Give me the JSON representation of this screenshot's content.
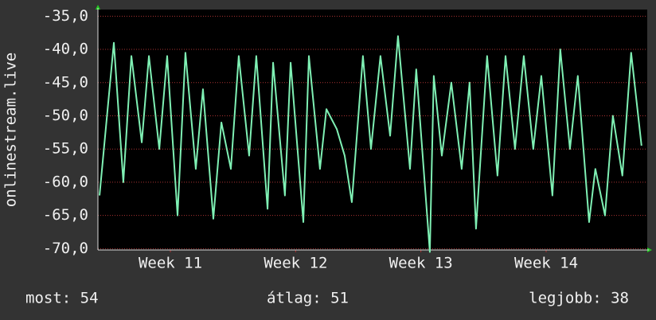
{
  "chart_data": {
    "type": "line",
    "y_label": "onlinestream.live",
    "x": [
      0.09,
      0.89,
      1.42,
      1.87,
      2.45,
      2.85,
      3.43,
      3.87,
      4.45,
      4.89,
      5.47,
      5.87,
      6.45,
      6.9,
      7.43,
      7.87,
      8.45,
      8.85,
      9.48,
      9.79,
      10.45,
      10.77,
      11.48,
      11.79,
      12.41,
      12.77,
      13.35,
      13.79,
      14.19,
      14.81,
      15.26,
      15.79,
      16.33,
      16.77,
      17.44,
      17.79,
      18.55,
      18.77,
      19.22,
      19.75,
      20.33,
      20.77,
      21.13,
      21.75,
      22.33,
      22.78,
      23.31,
      23.8,
      24.33,
      24.78,
      25.4,
      25.84,
      26.38,
      26.82,
      27.45,
      27.8,
      28.34,
      28.78,
      29.31,
      29.8,
      30.38
    ],
    "series": [
      {
        "color": "#7ff0b4",
        "values": [
          -62,
          -39,
          -60,
          -41,
          -54,
          -41,
          -55,
          -41,
          -65,
          -40.5,
          -58,
          -46,
          -65.5,
          -51,
          -58,
          -41,
          -56,
          -41,
          -64,
          -42,
          -62,
          -42,
          -66,
          -41,
          -58,
          -49,
          -52,
          -56,
          -63,
          -41,
          -55,
          -41,
          -53,
          -38,
          -58,
          -43,
          -70.5,
          -44,
          -56,
          -45,
          -58,
          -45,
          -67,
          -41,
          -59,
          -41,
          -55,
          -41,
          -55,
          -44,
          -62,
          -40,
          -55,
          -44,
          -66,
          -58,
          -65,
          -50,
          -59,
          -40.5,
          -54.5
        ]
      }
    ],
    "xlim": [
      0,
      30.7
    ],
    "xticks": [
      {
        "value": 4.05,
        "label": "Week 11"
      },
      {
        "value": 11.05,
        "label": "Week 12"
      },
      {
        "value": 18.05,
        "label": "Week 13"
      },
      {
        "value": 25.05,
        "label": "Week 14"
      }
    ],
    "ylim": [
      -70.2,
      -34
    ],
    "yticks": [
      {
        "value": -35,
        "label": "-35,0"
      },
      {
        "value": -40,
        "label": "-40,0"
      },
      {
        "value": -45,
        "label": "-45,0"
      },
      {
        "value": -50,
        "label": "-50,0"
      },
      {
        "value": -55,
        "label": "-55,0"
      },
      {
        "value": -60,
        "label": "-60,0"
      },
      {
        "value": -65,
        "label": "-65,0"
      },
      {
        "value": -70,
        "label": "-70,0"
      }
    ],
    "grid": true,
    "footer": [
      "most: 54",
      "átlag: 51",
      "legjobb: 38"
    ]
  }
}
